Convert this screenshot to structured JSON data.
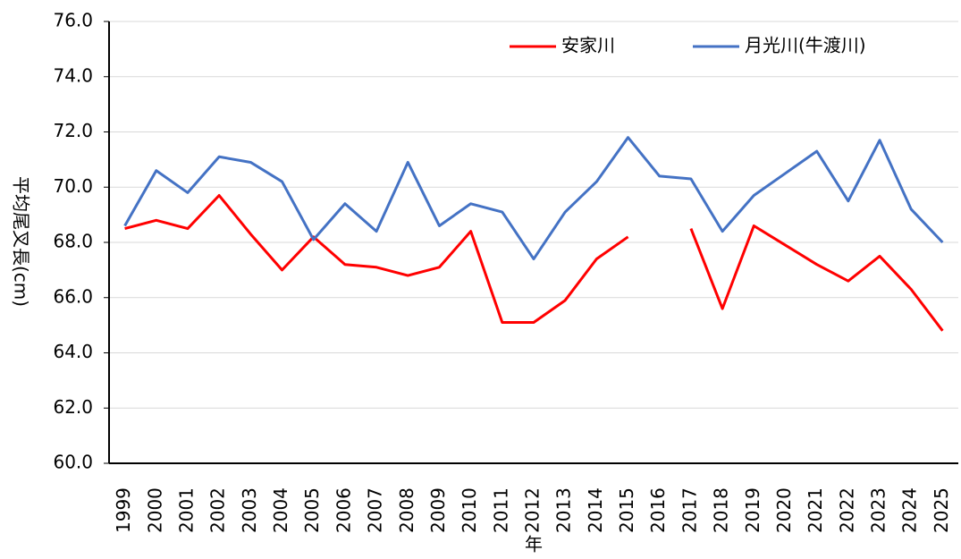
{
  "chart_data": {
    "type": "line",
    "x_label": "年",
    "y_label": "平均尾叉長(cm)",
    "categories": [
      "1999",
      "2000",
      "2001",
      "2002",
      "2003",
      "2004",
      "2005",
      "2006",
      "2007",
      "2008",
      "2009",
      "2010",
      "2011",
      "2012",
      "2013",
      "2014",
      "2015",
      "2016",
      "2017",
      "2018",
      "2019",
      "2020",
      "2021",
      "2022",
      "2023",
      "2024",
      "2025"
    ],
    "series": [
      {
        "name": "安家川",
        "color": "#ff0000",
        "values": [
          68.5,
          68.8,
          68.5,
          69.7,
          68.3,
          67.0,
          68.2,
          67.2,
          67.1,
          66.8,
          67.1,
          68.4,
          65.1,
          65.1,
          65.9,
          67.4,
          68.2,
          null,
          68.5,
          65.6,
          68.6,
          67.9,
          67.2,
          66.6,
          67.5,
          66.3,
          64.8
        ]
      },
      {
        "name": "月光川(牛渡川)",
        "color": "#4472c4",
        "values": [
          68.6,
          70.6,
          69.8,
          71.1,
          70.9,
          70.2,
          68.1,
          69.4,
          68.4,
          70.9,
          68.6,
          69.4,
          69.1,
          67.4,
          69.1,
          70.2,
          71.8,
          70.4,
          70.3,
          68.4,
          69.7,
          70.5,
          71.3,
          69.5,
          71.7,
          69.2,
          68.0
        ]
      }
    ],
    "ylim": [
      60,
      76
    ],
    "yticks": [
      {
        "value": 60,
        "label": "60.0"
      },
      {
        "value": 62,
        "label": "62.0"
      },
      {
        "value": 64,
        "label": "64.0"
      },
      {
        "value": 66,
        "label": "66.0"
      },
      {
        "value": 68,
        "label": "68.0"
      },
      {
        "value": 70,
        "label": "70.0"
      },
      {
        "value": 72,
        "label": "72.0"
      },
      {
        "value": 74,
        "label": "74.0"
      },
      {
        "value": 76,
        "label": "76.0"
      }
    ],
    "grid": true,
    "legend": "top-right"
  }
}
